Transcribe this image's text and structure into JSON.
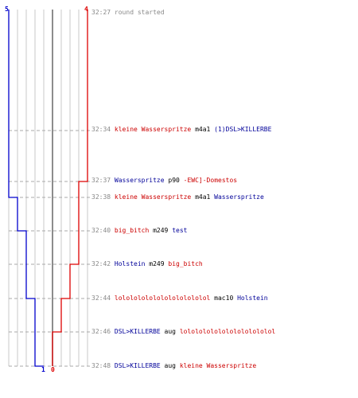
{
  "graph": {
    "team_blue": {
      "color": "#0000cc",
      "start_score": "5",
      "end_score": "1"
    },
    "team_red": {
      "color": "#dd0000",
      "start_score": "4",
      "end_score": "0"
    },
    "blue_scores": [
      5,
      5,
      4,
      3,
      2,
      1,
      1
    ],
    "red_scores": [
      4,
      4,
      3,
      2,
      1,
      0,
      0
    ]
  },
  "log": [
    {
      "time": "32:27",
      "message": "round started"
    },
    {
      "time": "32:34",
      "victim": "kleine Wasserspritze",
      "weapon": "m4a1",
      "killer": "(1)DSL>KILLERBE"
    },
    {
      "time": "32:37",
      "victim": "Wasserspritze",
      "weapon": "p90",
      "killer": "-EWC]-Domestos"
    },
    {
      "time": "32:38",
      "victim": "kleine Wasserspritze",
      "weapon": "m4a1",
      "killer": "Wasserspritze"
    },
    {
      "time": "32:40",
      "victim": "big_bitch",
      "weapon": "m249",
      "killer": "test"
    },
    {
      "time": "32:42",
      "victim": "Holstein",
      "weapon": "m249",
      "killer": "big_bitch"
    },
    {
      "time": "32:44",
      "victim": "lolololololololololololol",
      "weapon": "mac10",
      "killer": "Holstein"
    },
    {
      "time": "32:46",
      "victim": "DSL>KILLERBE",
      "weapon": "aug",
      "killer": "lolololololololololololol"
    },
    {
      "time": "32:48",
      "victim": "DSL>KILLERBE",
      "weapon": "aug",
      "killer": "kleine Wasserspritze"
    }
  ]
}
